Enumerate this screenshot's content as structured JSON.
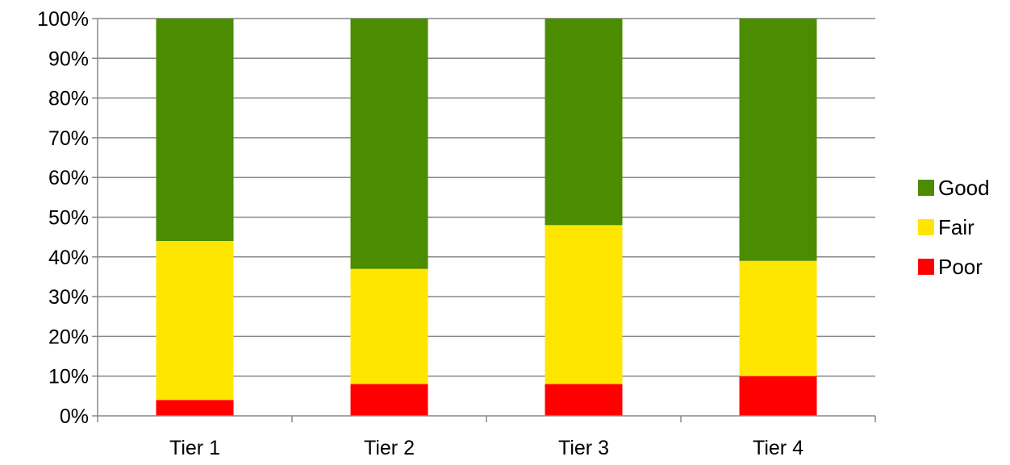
{
  "chart_data": {
    "type": "bar",
    "stacked": true,
    "normalized": true,
    "title": "",
    "xlabel": "",
    "ylabel": "",
    "categories": [
      "Tier 1",
      "Tier 2",
      "Tier 3",
      "Tier 4"
    ],
    "series": [
      {
        "name": "Poor",
        "color": "#ff0000",
        "values": [
          4,
          8,
          8,
          10
        ]
      },
      {
        "name": "Fair",
        "color": "#ffe600",
        "values": [
          40,
          29,
          40,
          29
        ]
      },
      {
        "name": "Good",
        "color": "#4b8c00",
        "values": [
          56,
          63,
          52,
          61
        ]
      }
    ],
    "ylim": [
      0,
      100
    ],
    "yticks": [
      "0%",
      "10%",
      "20%",
      "30%",
      "40%",
      "50%",
      "60%",
      "70%",
      "80%",
      "90%",
      "100%"
    ],
    "ytick_values": [
      0,
      10,
      20,
      30,
      40,
      50,
      60,
      70,
      80,
      90,
      100
    ],
    "grid": "horizontal",
    "legend_position": "right",
    "legend_order": [
      "Good",
      "Fair",
      "Poor"
    ],
    "colors": {
      "gridline": "#888888",
      "axis": "#888888",
      "text": "#000000"
    }
  }
}
